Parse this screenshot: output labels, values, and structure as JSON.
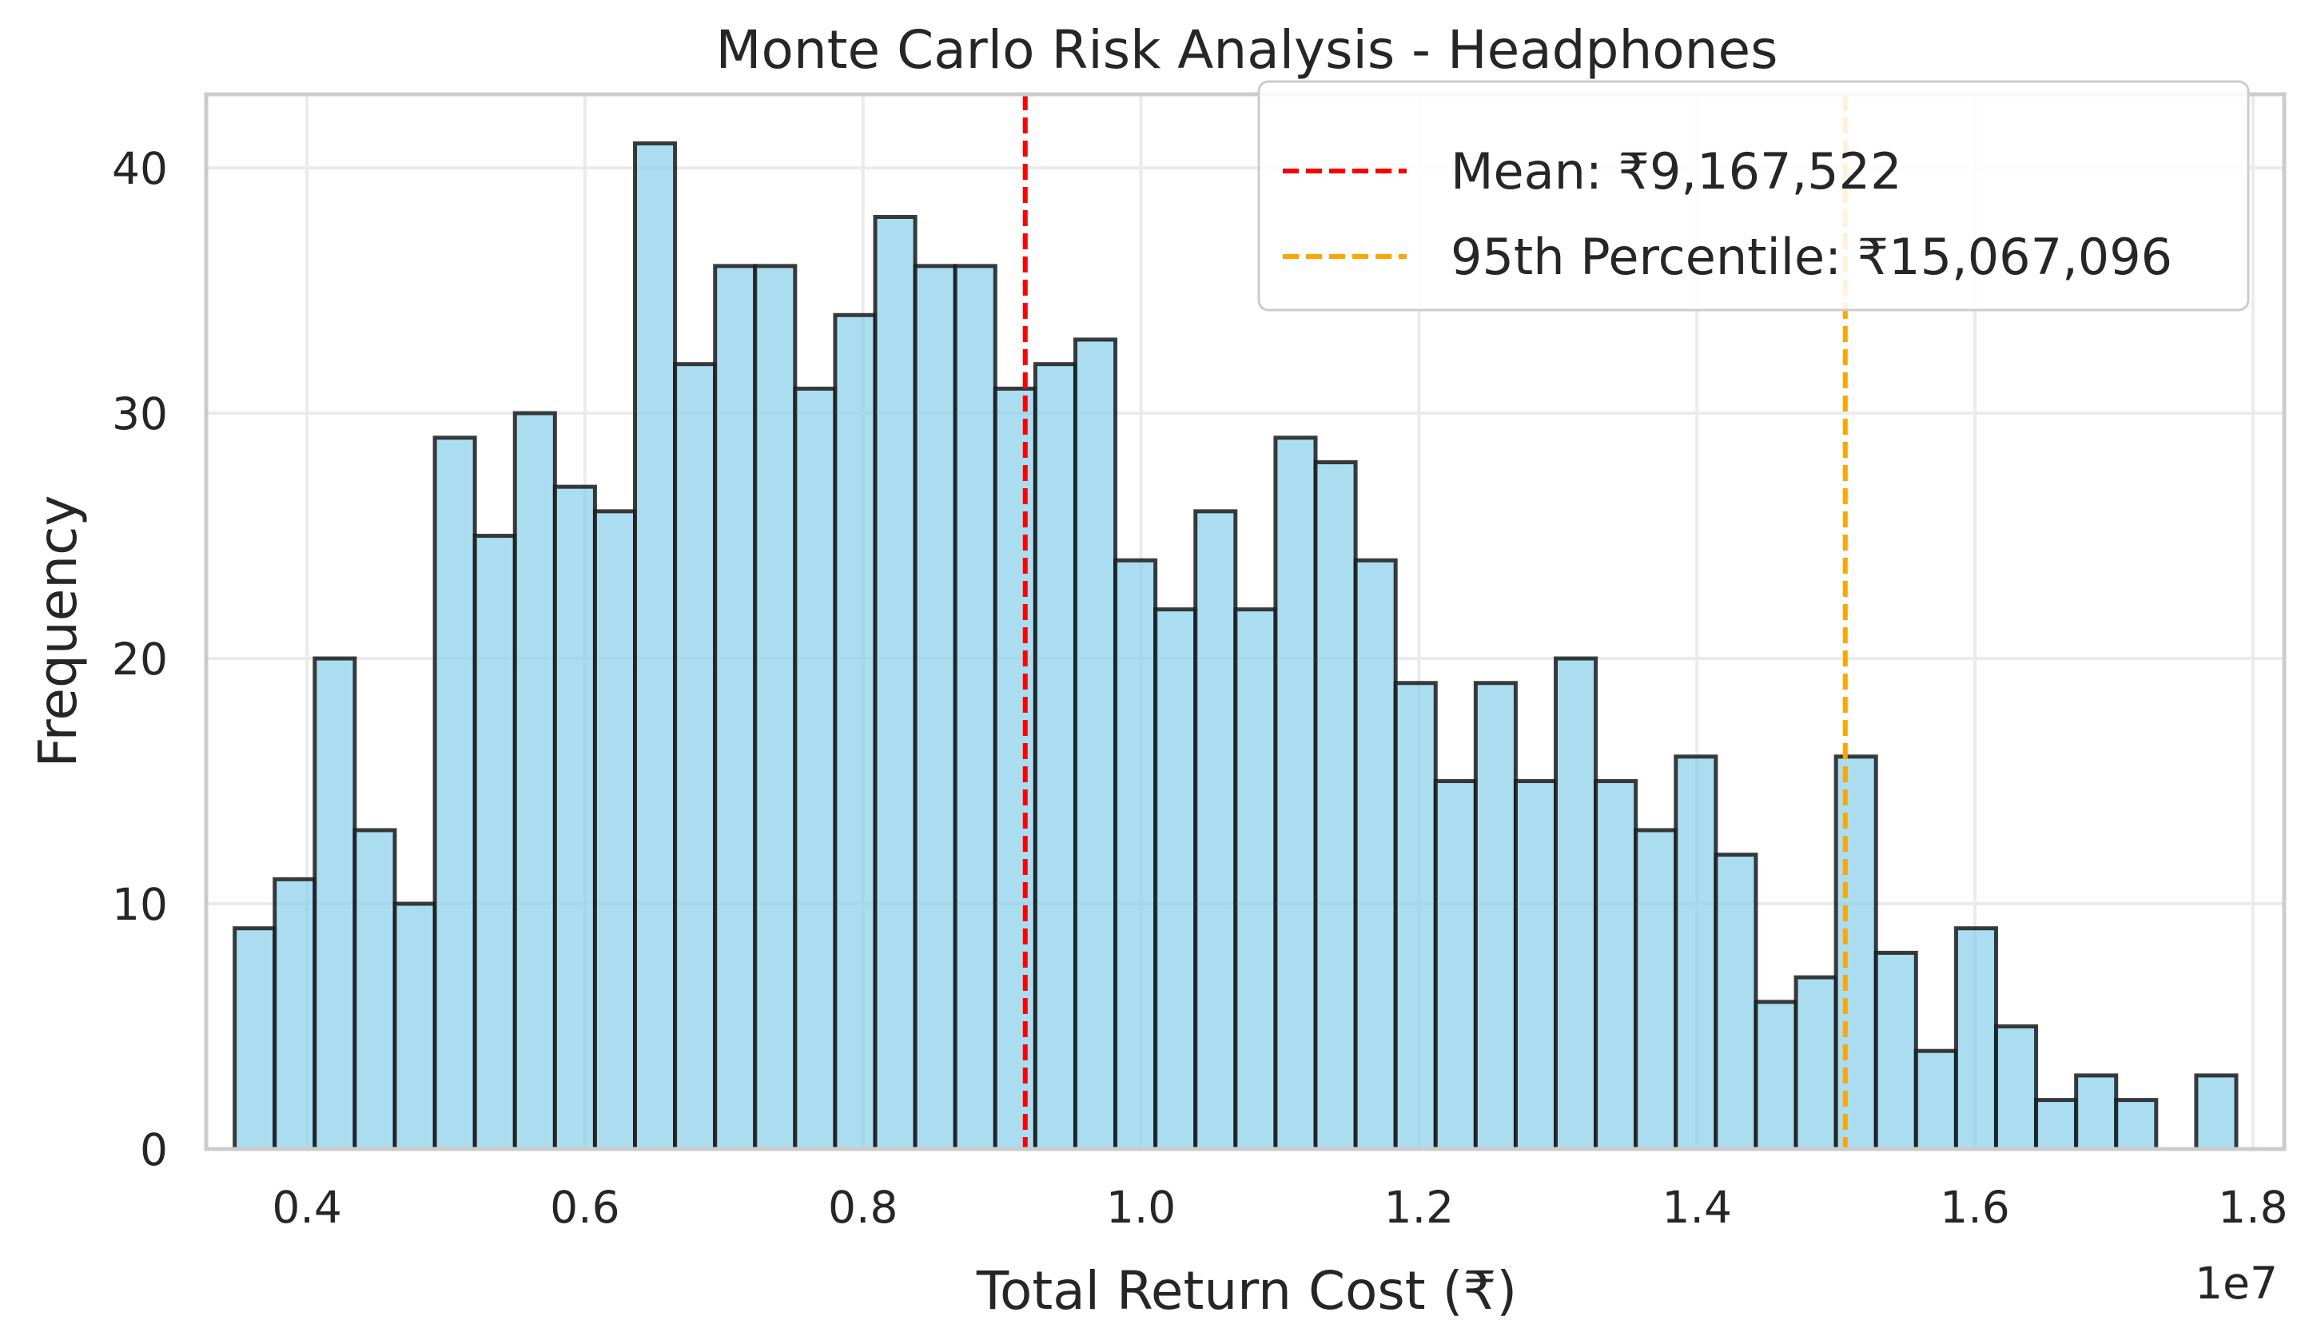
{
  "chart_data": {
    "type": "bar",
    "title": "Monte Carlo Risk Analysis - Headphones",
    "xlabel": "Total Return Cost (₹)",
    "ylabel": "Frequency",
    "x_offset_label": "1e7",
    "x_scale": 10000000,
    "xlim": [
      3275000,
      18225000
    ],
    "ylim": [
      0,
      43
    ],
    "xticks": [
      4000000,
      6000000,
      8000000,
      10000000,
      12000000,
      14000000,
      16000000,
      18000000
    ],
    "xtick_labels": [
      "0.4",
      "0.6",
      "0.8",
      "1.0",
      "1.2",
      "1.4",
      "1.6",
      "1.8"
    ],
    "yticks": [
      0,
      10,
      20,
      30,
      40
    ],
    "ytick_labels": [
      "0",
      "10",
      "20",
      "30",
      "40"
    ],
    "grid": true,
    "bin_start": 3480000,
    "bin_width": 288000,
    "counts": [
      9,
      11,
      20,
      13,
      10,
      29,
      25,
      30,
      27,
      26,
      41,
      32,
      36,
      36,
      31,
      34,
      38,
      36,
      36,
      31,
      32,
      33,
      24,
      22,
      26,
      22,
      29,
      28,
      24,
      19,
      15,
      19,
      15,
      20,
      15,
      13,
      16,
      12,
      6,
      7,
      16,
      8,
      4,
      9,
      5,
      2,
      3,
      2,
      0,
      3
    ],
    "bar_color": "#87ceeb",
    "bar_edge_color": "#1a1a1a",
    "reference_lines": [
      {
        "label": "Mean: ₹9,167,522",
        "value": 9167522,
        "color": "#ff0000"
      },
      {
        "label": "95th Percentile: ₹15,067,096",
        "value": 15067096,
        "color": "#ffa500"
      }
    ],
    "legend_position": "upper-right"
  }
}
